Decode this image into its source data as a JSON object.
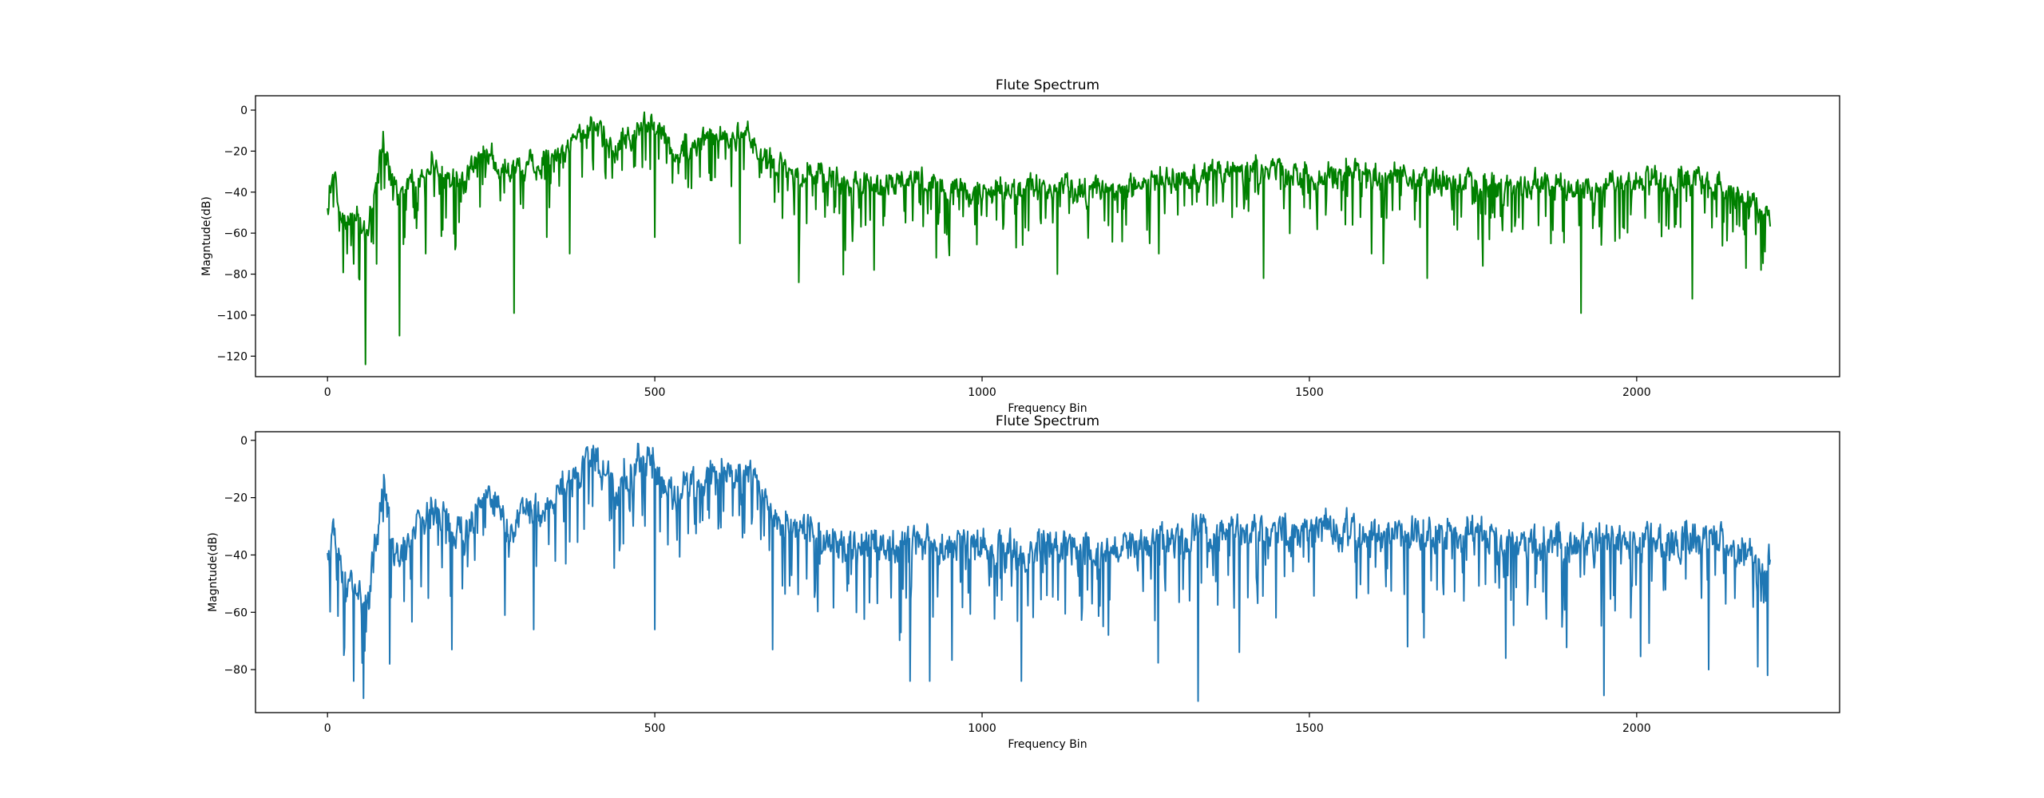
{
  "chart_data": [
    {
      "type": "line",
      "title": "Flute Spectrum",
      "xlabel": "Frequency Bin",
      "ylabel": "Magntude(dB)",
      "xlim": [
        -110,
        2310
      ],
      "ylim": [
        -130,
        7
      ],
      "xticks": [
        0,
        500,
        1000,
        1500,
        2000
      ],
      "yticks": [
        0,
        -20,
        -40,
        -60,
        -80,
        -100,
        -120
      ],
      "grid": false,
      "series": [
        {
          "color": "#008000",
          "n_points": 2205,
          "envelope": [
            [
              0,
              -42
            ],
            [
              10,
              -30
            ],
            [
              25,
              -55
            ],
            [
              45,
              -48
            ],
            [
              60,
              -60
            ],
            [
              75,
              -30
            ],
            [
              85,
              -12
            ],
            [
              100,
              -38
            ],
            [
              130,
              -33
            ],
            [
              160,
              -20
            ],
            [
              200,
              -35
            ],
            [
              240,
              -18
            ],
            [
              280,
              -28
            ],
            [
              320,
              -24
            ],
            [
              360,
              -18
            ],
            [
              405,
              -2
            ],
            [
              440,
              -18
            ],
            [
              490,
              -3
            ],
            [
              530,
              -18
            ],
            [
              580,
              -12
            ],
            [
              640,
              -8
            ],
            [
              680,
              -25
            ],
            [
              720,
              -28
            ],
            [
              800,
              -35
            ],
            [
              900,
              -32
            ],
            [
              1000,
              -38
            ],
            [
              1100,
              -35
            ],
            [
              1200,
              -37
            ],
            [
              1300,
              -30
            ],
            [
              1400,
              -27
            ],
            [
              1500,
              -30
            ],
            [
              1600,
              -28
            ],
            [
              1700,
              -32
            ],
            [
              1800,
              -33
            ],
            [
              1900,
              -36
            ],
            [
              2000,
              -33
            ],
            [
              2100,
              -32
            ],
            [
              2150,
              -38
            ],
            [
              2200,
              -47
            ]
          ],
          "dips": [
            [
              30,
              -70
            ],
            [
              40,
              -75
            ],
            [
              48,
              -82
            ],
            [
              58,
              -124
            ],
            [
              75,
              -75
            ],
            [
              110,
              -110
            ],
            [
              150,
              -70
            ],
            [
              195,
              -68
            ],
            [
              285,
              -99
            ],
            [
              335,
              -62
            ],
            [
              370,
              -70
            ],
            [
              500,
              -62
            ],
            [
              630,
              -65
            ],
            [
              720,
              -84
            ],
            [
              835,
              -78
            ],
            [
              930,
              -72
            ],
            [
              1115,
              -80
            ],
            [
              1270,
              -70
            ],
            [
              1430,
              -82
            ],
            [
              1595,
              -70
            ],
            [
              1680,
              -82
            ],
            [
              1765,
              -76
            ],
            [
              1915,
              -99
            ],
            [
              2085,
              -92
            ],
            [
              2190,
              -78
            ]
          ]
        }
      ]
    },
    {
      "type": "line",
      "title": "Flute Spectrum",
      "xlabel": "Frequency Bin",
      "ylabel": "Magntude(dB)",
      "xlim": [
        -110,
        2310
      ],
      "ylim": [
        -95,
        3
      ],
      "xticks": [
        0,
        500,
        1000,
        1500,
        2000
      ],
      "yticks": [
        0,
        -20,
        -40,
        -60,
        -80
      ],
      "grid": false,
      "series": [
        {
          "color": "#1f77b4",
          "n_points": 2205,
          "envelope": [
            [
              0,
              -42
            ],
            [
              10,
              -30
            ],
            [
              25,
              -52
            ],
            [
              45,
              -48
            ],
            [
              60,
              -58
            ],
            [
              75,
              -30
            ],
            [
              85,
              -12
            ],
            [
              100,
              -36
            ],
            [
              130,
              -30
            ],
            [
              160,
              -20
            ],
            [
              200,
              -33
            ],
            [
              240,
              -17
            ],
            [
              280,
              -26
            ],
            [
              320,
              -22
            ],
            [
              360,
              -16
            ],
            [
              405,
              -2
            ],
            [
              440,
              -15
            ],
            [
              490,
              -2
            ],
            [
              530,
              -16
            ],
            [
              580,
              -10
            ],
            [
              650,
              -8
            ],
            [
              690,
              -26
            ],
            [
              750,
              -30
            ],
            [
              800,
              -34
            ],
            [
              900,
              -33
            ],
            [
              1000,
              -36
            ],
            [
              1100,
              -35
            ],
            [
              1200,
              -36
            ],
            [
              1300,
              -32
            ],
            [
              1400,
              -30
            ],
            [
              1500,
              -28
            ],
            [
              1600,
              -30
            ],
            [
              1700,
              -30
            ],
            [
              1800,
              -32
            ],
            [
              1900,
              -34
            ],
            [
              2000,
              -33
            ],
            [
              2100,
              -32
            ],
            [
              2150,
              -36
            ],
            [
              2200,
              -40
            ]
          ],
          "dips": [
            [
              25,
              -75
            ],
            [
              40,
              -84
            ],
            [
              55,
              -90
            ],
            [
              95,
              -78
            ],
            [
              190,
              -73
            ],
            [
              315,
              -66
            ],
            [
              500,
              -66
            ],
            [
              680,
              -73
            ],
            [
              890,
              -84
            ],
            [
              920,
              -84
            ],
            [
              1060,
              -84
            ],
            [
              1330,
              -91
            ],
            [
              1650,
              -72
            ],
            [
              1800,
              -76
            ],
            [
              1950,
              -89
            ],
            [
              2110,
              -80
            ],
            [
              2185,
              -79
            ],
            [
              2200,
              -82
            ]
          ]
        }
      ]
    }
  ]
}
